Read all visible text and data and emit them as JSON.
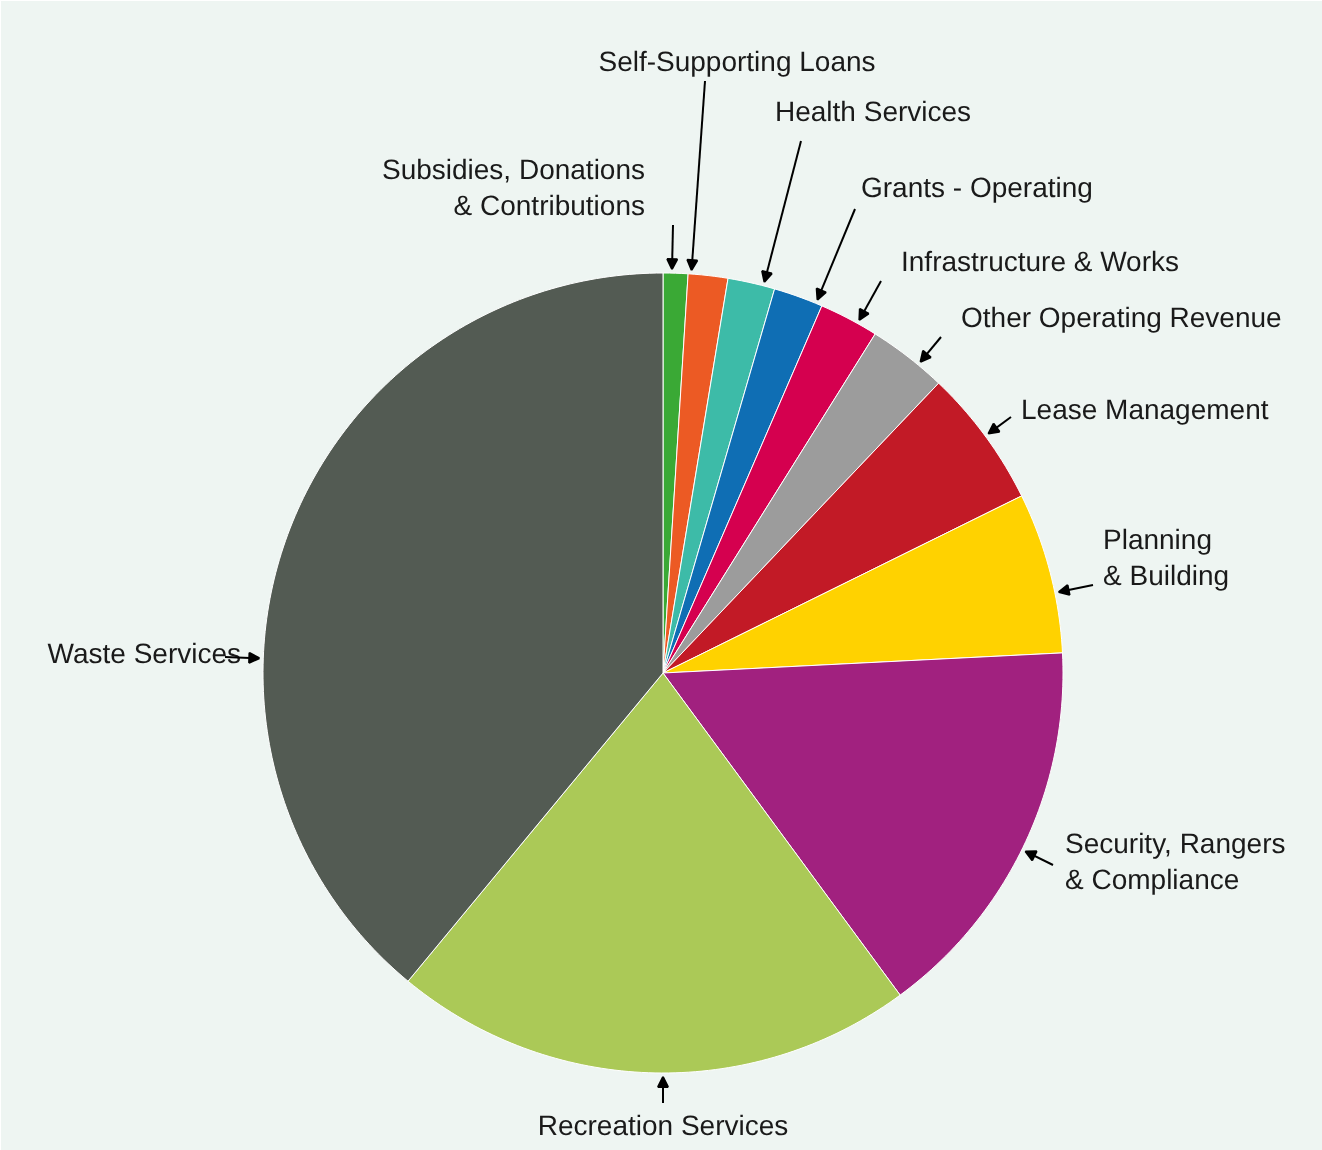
{
  "chart_data": {
    "type": "pie",
    "categories": [
      "Subsidies, Donations\n& Contributions",
      "Self-Supporting Loans",
      "Health Services",
      "Grants - Operating",
      "Infrastructure & Works",
      "Other Operating Revenue",
      "Lease Management",
      "Planning\n& Building",
      "Security, Rangers\n& Compliance",
      "Recreation Services",
      "Waste Services"
    ],
    "values": [
      1.0,
      1.6,
      1.9,
      2.0,
      2.4,
      3.2,
      5.6,
      6.5,
      15.7,
      21.1,
      39.0
    ],
    "colors": [
      "#3aa935",
      "#ec5a24",
      "#3dbba8",
      "#0f6eb4",
      "#d5004f",
      "#9c9c9c",
      "#c21a26",
      "#ffd200",
      "#a1217f",
      "#abc957",
      "#535b53"
    ]
  }
}
